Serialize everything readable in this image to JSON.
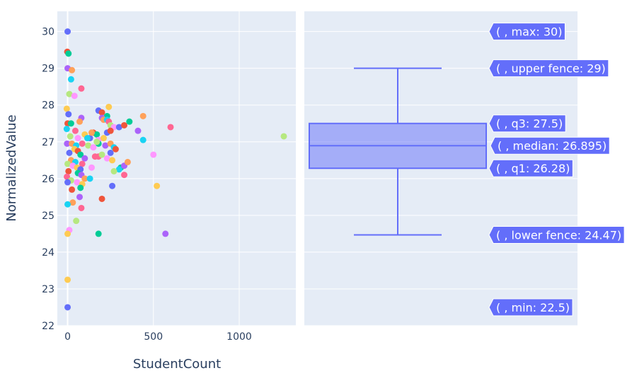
{
  "colors": {
    "plot_bg": "#e5ecf6",
    "grid": "#ffffff",
    "box": "#636efa",
    "text": "#2a3f5f",
    "scatter_palette": [
      "#636efa",
      "#ef553b",
      "#00cc96",
      "#ab63fa",
      "#ffa15a",
      "#19d3f3",
      "#ff6692",
      "#b6e880",
      "#ff97ff",
      "#fecb52"
    ]
  },
  "chart_data": [
    {
      "type": "scatter",
      "xlabel": "StudentCount",
      "ylabel": "NormalizedValue",
      "xlim": [
        -60,
        1330
      ],
      "ylim": [
        22,
        30.55
      ],
      "xticks": [
        0,
        500,
        1000
      ],
      "yticks": [
        22,
        23,
        24,
        25,
        26,
        27,
        28,
        29,
        30
      ],
      "grid": true,
      "points": [
        [
          0,
          30.0
        ],
        [
          -2,
          29.45
        ],
        [
          5,
          29.4
        ],
        [
          0,
          29.0
        ],
        [
          25,
          28.95
        ],
        [
          20,
          28.7
        ],
        [
          80,
          28.45
        ],
        [
          10,
          28.3
        ],
        [
          40,
          28.25
        ],
        [
          -5,
          27.9
        ],
        [
          5,
          27.75
        ],
        [
          0,
          27.5
        ],
        [
          20,
          27.5
        ],
        [
          80,
          27.65
        ],
        [
          70,
          27.55
        ],
        [
          -5,
          27.35
        ],
        [
          45,
          27.3
        ],
        [
          15,
          27.15
        ],
        [
          60,
          27.1
        ],
        [
          100,
          27.2
        ],
        [
          130,
          27.1
        ],
        [
          150,
          27.25
        ],
        [
          170,
          27.2
        ],
        [
          -3,
          26.95
        ],
        [
          25,
          26.95
        ],
        [
          50,
          26.9
        ],
        [
          85,
          26.95
        ],
        [
          120,
          26.9
        ],
        [
          150,
          26.85
        ],
        [
          40,
          26.8
        ],
        [
          10,
          26.7
        ],
        [
          60,
          26.75
        ],
        [
          75,
          26.65
        ],
        [
          100,
          26.55
        ],
        [
          20,
          26.5
        ],
        [
          45,
          26.45
        ],
        [
          85,
          26.4
        ],
        [
          0,
          26.4
        ],
        [
          30,
          26.35
        ],
        [
          55,
          26.3
        ],
        [
          75,
          26.25
        ],
        [
          5,
          26.2
        ],
        [
          60,
          26.15
        ],
        [
          80,
          26.1
        ],
        [
          100,
          26.0
        ],
        [
          130,
          26.0
        ],
        [
          -4,
          26.05
        ],
        [
          20,
          25.95
        ],
        [
          55,
          25.9
        ],
        [
          85,
          25.85
        ],
        [
          0,
          25.9
        ],
        [
          25,
          25.7
        ],
        [
          75,
          25.75
        ],
        [
          70,
          25.5
        ],
        [
          30,
          25.35
        ],
        [
          0,
          25.3
        ],
        [
          80,
          25.2
        ],
        [
          50,
          24.85
        ],
        [
          10,
          24.6
        ],
        [
          0,
          24.5
        ],
        [
          180,
          27.85
        ],
        [
          200,
          27.8
        ],
        [
          230,
          27.7
        ],
        [
          200,
          27.65
        ],
        [
          210,
          27.6
        ],
        [
          230,
          27.6
        ],
        [
          240,
          27.55
        ],
        [
          250,
          27.45
        ],
        [
          270,
          27.4
        ],
        [
          240,
          27.95
        ],
        [
          300,
          27.4
        ],
        [
          330,
          27.45
        ],
        [
          360,
          27.55
        ],
        [
          410,
          27.3
        ],
        [
          440,
          27.7
        ],
        [
          440,
          27.05
        ],
        [
          600,
          27.4
        ],
        [
          1260,
          27.15
        ],
        [
          180,
          27.05
        ],
        [
          210,
          27.1
        ],
        [
          230,
          27.25
        ],
        [
          250,
          27.3
        ],
        [
          180,
          26.95
        ],
        [
          220,
          26.9
        ],
        [
          250,
          26.95
        ],
        [
          270,
          26.85
        ],
        [
          180,
          26.6
        ],
        [
          200,
          26.65
        ],
        [
          230,
          26.55
        ],
        [
          260,
          26.5
        ],
        [
          250,
          26.7
        ],
        [
          280,
          26.8
        ],
        [
          310,
          26.3
        ],
        [
          330,
          26.35
        ],
        [
          350,
          26.45
        ],
        [
          300,
          26.25
        ],
        [
          330,
          26.1
        ],
        [
          270,
          26.2
        ],
        [
          500,
          26.65
        ],
        [
          520,
          25.8
        ],
        [
          260,
          25.8
        ],
        [
          200,
          25.45
        ],
        [
          180,
          24.5
        ],
        [
          570,
          24.5
        ],
        [
          140,
          27.25
        ],
        [
          115,
          27.1
        ],
        [
          160,
          26.6
        ],
        [
          170,
          27.0
        ],
        [
          140,
          26.3
        ],
        [
          0,
          23.25
        ],
        [
          0,
          22.5
        ]
      ]
    },
    {
      "type": "box",
      "ylim": [
        22,
        30.55
      ],
      "grid": true,
      "stats": {
        "min": 22.5,
        "lower_fence": 24.47,
        "q1": 26.28,
        "median": 26.895,
        "q3": 27.5,
        "upper_fence": 29,
        "max": 30
      },
      "hover_labels": [
        {
          "key": "max",
          "text": "( , max: 30)"
        },
        {
          "key": "upper_fence",
          "text": "( , upper fence: 29)"
        },
        {
          "key": "q3",
          "text": "( , q3: 27.5)"
        },
        {
          "key": "median",
          "text": "( , median: 26.895)"
        },
        {
          "key": "q1",
          "text": "( , q1: 26.28)"
        },
        {
          "key": "lower_fence",
          "text": "( , lower fence: 24.47)"
        },
        {
          "key": "min",
          "text": "( , min: 22.5)"
        }
      ]
    }
  ]
}
